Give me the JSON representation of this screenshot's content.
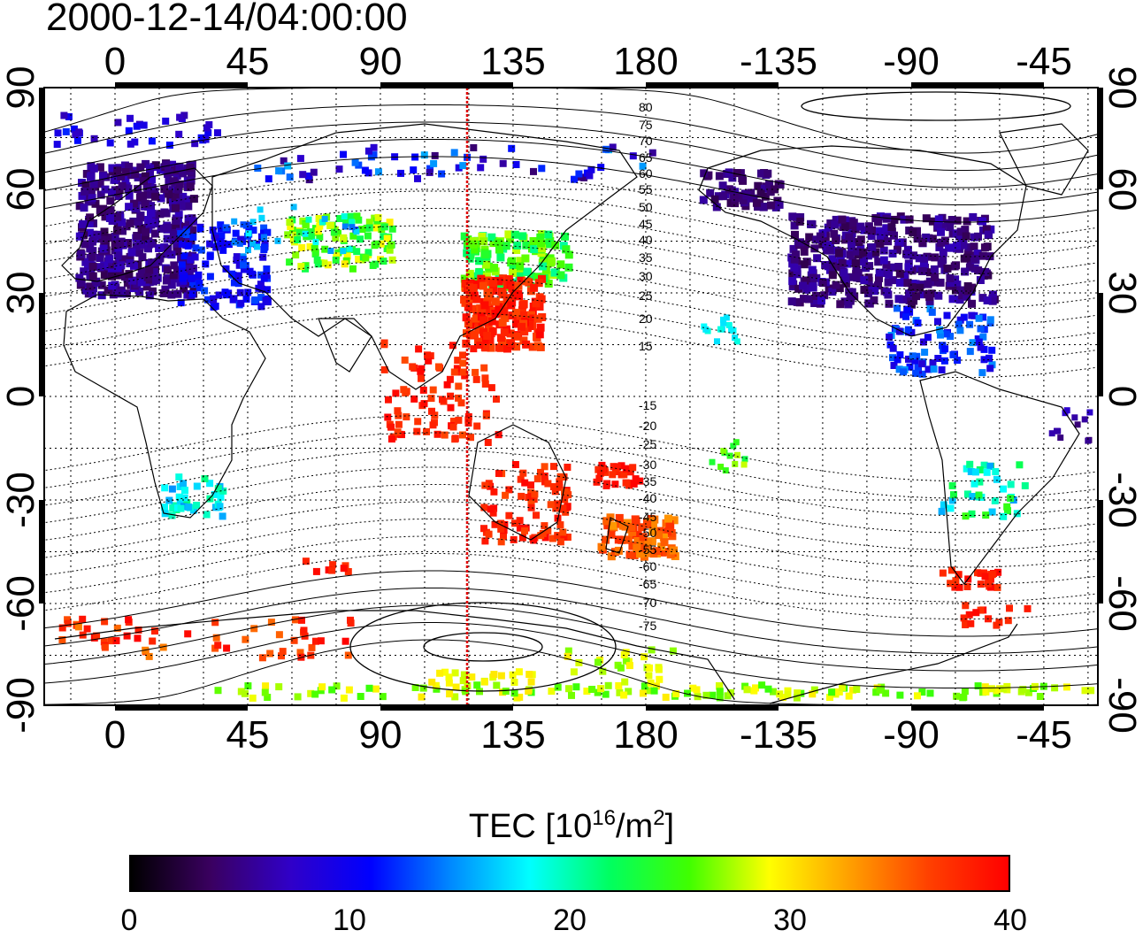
{
  "timestamp": "2000-12-14/04:00:00",
  "map": {
    "x_ticks_top": [
      "0",
      "45",
      "90",
      "135",
      "180",
      "-135",
      "-90",
      "-45"
    ],
    "x_ticks_bottom": [
      "0",
      "45",
      "90",
      "135",
      "180",
      "-135",
      "-90",
      "-45"
    ],
    "y_ticks_left": [
      "90",
      "60",
      "30",
      "0",
      "-30",
      "-60",
      "-90"
    ],
    "y_ticks_right": [
      "90",
      "60",
      "30",
      "0",
      "-30",
      "-60",
      "-90"
    ],
    "contour_labels": [
      "80",
      "75",
      "70",
      "65",
      "60",
      "55",
      "50",
      "45",
      "40",
      "35",
      "30",
      "25",
      "20",
      "15",
      "-15",
      "-20",
      "-25",
      "-30",
      "-35",
      "-40",
      "-45",
      "-50",
      "-55",
      "-60",
      "-65",
      "-70",
      "-75"
    ],
    "meridian_line_color": "#e00000",
    "meridian_longitude": 120,
    "grid": "dotted"
  },
  "colorbar": {
    "title_prefix": "TEC  [10",
    "title_exp1": "16",
    "title_mid": "/m",
    "title_exp2": "2",
    "title_suffix": "]",
    "ticks": [
      "0",
      "10",
      "20",
      "30",
      "40"
    ],
    "range": [
      0,
      40
    ],
    "colormap": [
      "#000000",
      "#3a0060",
      "#3000c8",
      "#0000ff",
      "#0088ff",
      "#00ffff",
      "#00ff60",
      "#40ff00",
      "#ffff00",
      "#ffa000",
      "#ff4000",
      "#ff0000"
    ]
  }
}
